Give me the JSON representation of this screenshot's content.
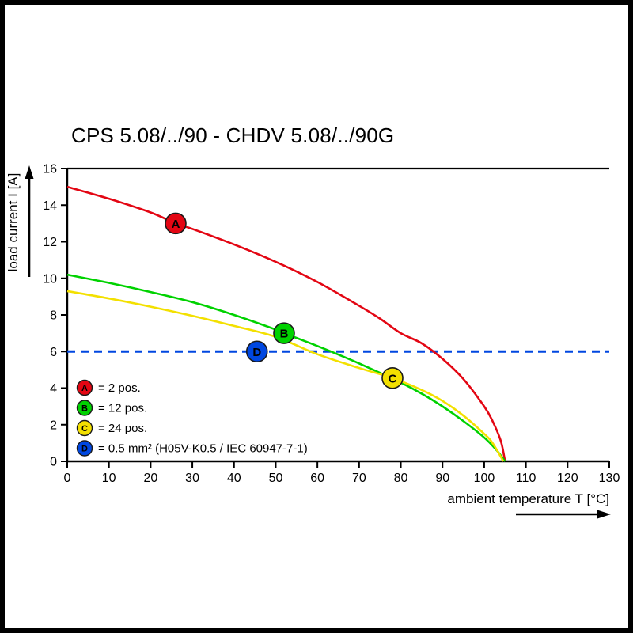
{
  "chart_data": {
    "type": "line",
    "title": "CPS 5.08/../90 - CHDV 5.08/../90G",
    "xlabel": "ambient temperature T [°C]",
    "ylabel": "load current I [A]",
    "xlim": [
      0,
      130
    ],
    "ylim": [
      0,
      16
    ],
    "xticks": [
      0,
      10,
      20,
      30,
      40,
      50,
      60,
      70,
      80,
      90,
      100,
      110,
      120,
      130
    ],
    "yticks": [
      0,
      2,
      4,
      6,
      8,
      10,
      12,
      14,
      16
    ],
    "grid": false,
    "legend_position": "bottom-left",
    "series": [
      {
        "name": "A",
        "legend_label": "= 2 pos.",
        "color": "#e30613",
        "style": "solid",
        "marker": {
          "x": 26,
          "y": 13
        },
        "points": [
          [
            0,
            15
          ],
          [
            10,
            14.35
          ],
          [
            20,
            13.6
          ],
          [
            26,
            13.0
          ],
          [
            30,
            12.7
          ],
          [
            40,
            11.85
          ],
          [
            50,
            10.9
          ],
          [
            60,
            9.8
          ],
          [
            70,
            8.5
          ],
          [
            75,
            7.8
          ],
          [
            80,
            7.0
          ],
          [
            85,
            6.45
          ],
          [
            90,
            5.6
          ],
          [
            95,
            4.5
          ],
          [
            100,
            3.0
          ],
          [
            102,
            2.2
          ],
          [
            104,
            1.1
          ],
          [
            105,
            0
          ]
        ]
      },
      {
        "name": "B",
        "legend_label": "= 12 pos.",
        "color": "#00d200",
        "style": "solid",
        "marker": {
          "x": 52,
          "y": 7
        },
        "points": [
          [
            0,
            10.2
          ],
          [
            10,
            9.75
          ],
          [
            20,
            9.25
          ],
          [
            30,
            8.7
          ],
          [
            40,
            8.0
          ],
          [
            50,
            7.2
          ],
          [
            52,
            7.0
          ],
          [
            60,
            6.3
          ],
          [
            70,
            5.35
          ],
          [
            80,
            4.3
          ],
          [
            85,
            3.7
          ],
          [
            90,
            3.0
          ],
          [
            95,
            2.2
          ],
          [
            100,
            1.3
          ],
          [
            103,
            0.6
          ],
          [
            105,
            0
          ]
        ]
      },
      {
        "name": "C",
        "legend_label": "= 24 pos.",
        "color": "#f3e000",
        "style": "solid",
        "marker": {
          "x": 78,
          "y": 4.55
        },
        "points": [
          [
            0,
            9.3
          ],
          [
            10,
            8.9
          ],
          [
            20,
            8.45
          ],
          [
            30,
            7.95
          ],
          [
            40,
            7.4
          ],
          [
            50,
            6.8
          ],
          [
            60,
            5.85
          ],
          [
            70,
            5.1
          ],
          [
            78,
            4.55
          ],
          [
            85,
            3.9
          ],
          [
            90,
            3.3
          ],
          [
            95,
            2.5
          ],
          [
            100,
            1.5
          ],
          [
            102,
            1.0
          ],
          [
            104.6,
            0
          ]
        ]
      },
      {
        "name": "D",
        "legend_label": "= 0.5 mm² (H05V-K0.5 / IEC 60947-7-1)",
        "color": "#0047e0",
        "style": "dashed",
        "marker": {
          "x": 45.5,
          "y": 6
        },
        "points": [
          [
            0,
            6
          ],
          [
            130,
            6
          ]
        ]
      }
    ]
  }
}
